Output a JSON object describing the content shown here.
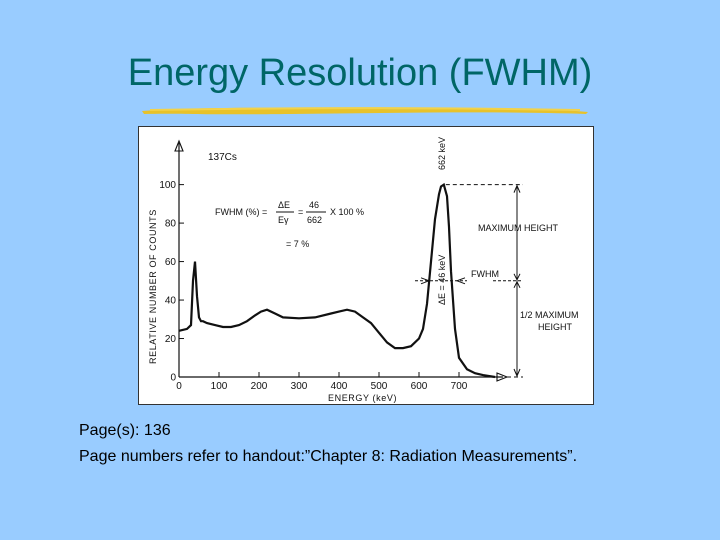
{
  "slide": {
    "title": "Energy Resolution (FWHM)",
    "title_color": "#006666",
    "background": "#99ccff",
    "underline_color": "#e8c22a"
  },
  "footer": {
    "line1": "Page(s): 136",
    "line2": "Page numbers refer to handout:”Chapter 8: Radiation Measurements”."
  },
  "chart_data": {
    "type": "line",
    "xlabel": "ENERGY (keV)",
    "ylabel": "RELATIVE NUMBER OF COUNTS",
    "xlim": [
      0,
      790
    ],
    "ylim": [
      0,
      105
    ],
    "x_ticks": [
      0,
      100,
      200,
      300,
      400,
      500,
      600,
      700
    ],
    "y_ticks": [
      0,
      20,
      40,
      60,
      80,
      100
    ],
    "series": [
      {
        "x": [
          0,
          20,
          30,
          35,
          40,
          45,
          50,
          55,
          60,
          70,
          90,
          110,
          130,
          150,
          170,
          190,
          205,
          220,
          240,
          260,
          300,
          340,
          380,
          400,
          420,
          440,
          460,
          480,
          500,
          520,
          540,
          560,
          580,
          600,
          610,
          620,
          630,
          640,
          650,
          655,
          662,
          670,
          675,
          680,
          690,
          700,
          720,
          740,
          760,
          790
        ],
        "y": [
          24,
          25,
          27,
          50,
          60,
          42,
          31,
          29,
          29,
          28,
          27,
          26,
          26,
          27,
          29,
          32,
          34,
          35,
          33,
          31,
          30.5,
          31,
          33,
          34,
          35,
          34,
          31,
          28,
          23,
          18,
          15,
          15,
          16,
          20,
          25,
          38,
          60,
          82,
          95,
          99,
          100,
          94,
          78,
          55,
          25,
          10,
          4,
          2,
          1,
          0
        ]
      }
    ],
    "annotations": {
      "source": "137Cs",
      "peak_label": "662 keV",
      "formula_prefix": "FWHM (%) =",
      "formula_num1": "ΔE",
      "formula_den1": "Eγ",
      "formula_eq": "=",
      "formula_num2": "46",
      "formula_den2": "662",
      "formula_suffix": "X 100 %",
      "formula_result": "= 7 %",
      "delta_e": "ΔE = 46 keV",
      "fwhm": "FWHM",
      "max_height": "MAXIMUM HEIGHT",
      "half_max_line1": "1/2 MAXIMUM",
      "half_max_line2": "HEIGHT"
    }
  }
}
